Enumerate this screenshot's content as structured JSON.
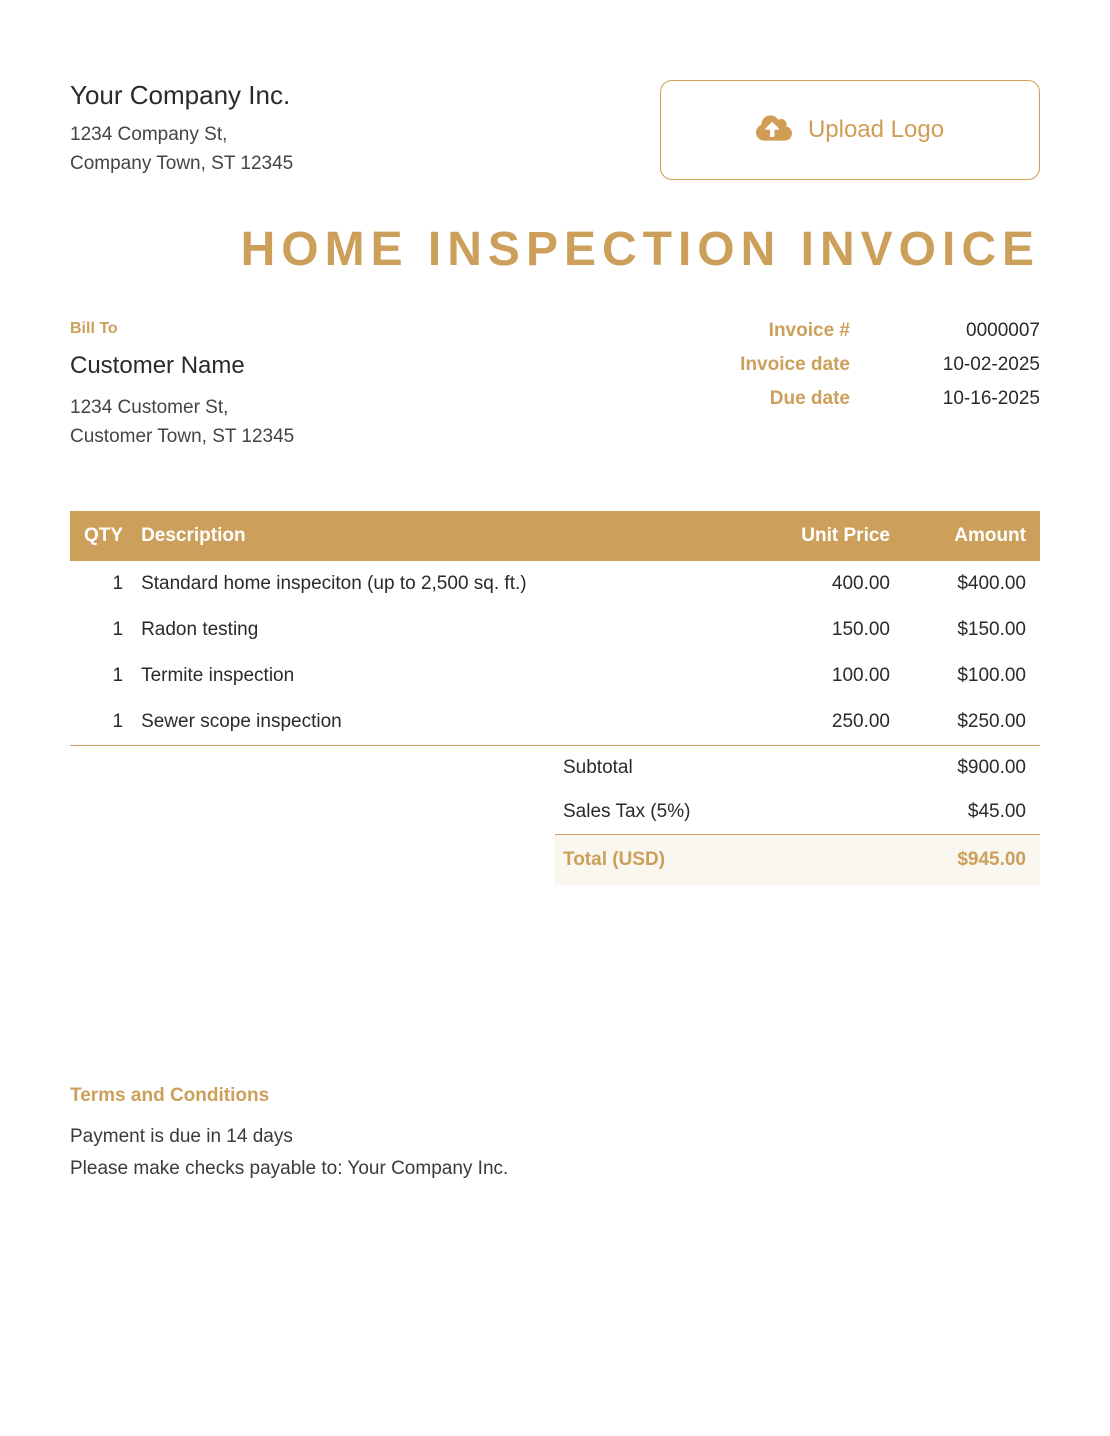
{
  "colors": {
    "accent": "#cc9f5a",
    "accent_border": "#d19d55",
    "text": "#2a2a2a",
    "text_muted": "#444",
    "total_bg": "#faf7f0",
    "background": "#ffffff"
  },
  "company": {
    "name": "Your Company Inc.",
    "addr_line1": "1234 Company St,",
    "addr_line2": "Company Town, ST 12345"
  },
  "upload": {
    "label": "Upload Logo"
  },
  "title": "HOME INSPECTION INVOICE",
  "bill_to": {
    "heading": "Bill To",
    "name": "Customer Name",
    "addr_line1": "1234 Customer St,",
    "addr_line2": "Customer Town, ST 12345"
  },
  "meta": {
    "invoice_num_label": "Invoice #",
    "invoice_num": "0000007",
    "invoice_date_label": "Invoice date",
    "invoice_date": "10-02-2025",
    "due_date_label": "Due date",
    "due_date": "10-16-2025"
  },
  "table": {
    "columns": {
      "qty": "QTY",
      "desc": "Description",
      "price": "Unit Price",
      "amount": "Amount"
    },
    "rows": [
      {
        "qty": "1",
        "desc": "Standard home inspeciton (up to 2,500 sq. ft.)",
        "price": "400.00",
        "amount": "$400.00"
      },
      {
        "qty": "1",
        "desc": "Radon testing",
        "price": "150.00",
        "amount": "$150.00"
      },
      {
        "qty": "1",
        "desc": "Termite inspection",
        "price": "100.00",
        "amount": "$100.00"
      },
      {
        "qty": "1",
        "desc": "Sewer scope inspection",
        "price": "250.00",
        "amount": "$250.00"
      }
    ]
  },
  "totals": {
    "subtotal_label": "Subtotal",
    "subtotal": "$900.00",
    "tax_label": "Sales Tax (5%)",
    "tax": "$45.00",
    "total_label": "Total (USD)",
    "total": "$945.00"
  },
  "terms": {
    "heading": "Terms and Conditions",
    "line1": "Payment is due in 14 days",
    "line2": "Please make checks payable to: Your Company Inc."
  }
}
